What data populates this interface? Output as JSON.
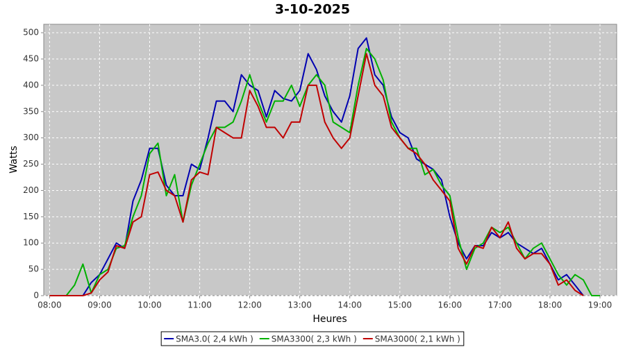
{
  "chart_data": {
    "type": "line",
    "title": "3-10-2025",
    "x_label": "Heures",
    "y_label": "Watts",
    "x": [
      "08:00",
      "08:10",
      "08:20",
      "08:30",
      "08:40",
      "08:50",
      "09:00",
      "09:10",
      "09:20",
      "09:30",
      "09:40",
      "09:50",
      "10:00",
      "10:10",
      "10:20",
      "10:30",
      "10:40",
      "10:50",
      "11:00",
      "11:10",
      "11:20",
      "11:30",
      "11:40",
      "11:50",
      "12:00",
      "12:10",
      "12:20",
      "12:30",
      "12:40",
      "12:50",
      "13:00",
      "13:10",
      "13:20",
      "13:30",
      "13:40",
      "13:50",
      "14:00",
      "14:10",
      "14:20",
      "14:30",
      "14:40",
      "14:50",
      "15:00",
      "15:10",
      "15:20",
      "15:30",
      "15:40",
      "15:50",
      "16:00",
      "16:10",
      "16:20",
      "16:30",
      "16:40",
      "16:50",
      "17:00",
      "17:10",
      "17:20",
      "17:30",
      "17:40",
      "17:50",
      "18:00",
      "18:10",
      "18:20",
      "18:30",
      "18:40",
      "18:50",
      "19:00"
    ],
    "series": [
      {
        "name": "SMA3.0( 2,4 kWh )",
        "color": "#0000b0",
        "values": [
          null,
          null,
          null,
          null,
          0,
          25,
          40,
          70,
          100,
          90,
          180,
          220,
          280,
          280,
          210,
          190,
          190,
          250,
          240,
          300,
          370,
          370,
          350,
          420,
          400,
          390,
          340,
          390,
          375,
          370,
          390,
          460,
          430,
          380,
          350,
          330,
          380,
          470,
          490,
          420,
          400,
          340,
          310,
          300,
          260,
          250,
          240,
          220,
          150,
          100,
          70,
          95,
          95,
          120,
          110,
          120,
          100,
          90,
          80,
          90,
          60,
          30,
          40,
          20,
          0,
          null,
          null
        ]
      },
      {
        "name": "SMA3300( 2,3 kWh )",
        "color": "#00b000",
        "values": [
          0,
          0,
          0,
          20,
          60,
          5,
          40,
          50,
          90,
          95,
          150,
          190,
          270,
          290,
          190,
          230,
          140,
          210,
          250,
          290,
          320,
          320,
          330,
          370,
          420,
          370,
          330,
          370,
          370,
          400,
          360,
          400,
          420,
          400,
          330,
          320,
          310,
          400,
          470,
          450,
          410,
          330,
          300,
          280,
          280,
          230,
          240,
          210,
          190,
          110,
          50,
          90,
          100,
          130,
          120,
          130,
          100,
          70,
          90,
          100,
          70,
          40,
          20,
          40,
          30,
          0,
          0
        ]
      },
      {
        "name": "SMA3000( 2,1 kWh )",
        "color": "#c00000",
        "values": [
          0,
          0,
          0,
          0,
          0,
          5,
          30,
          45,
          95,
          90,
          140,
          150,
          230,
          235,
          200,
          190,
          140,
          220,
          235,
          230,
          320,
          310,
          300,
          300,
          390,
          360,
          320,
          320,
          300,
          330,
          330,
          400,
          400,
          330,
          300,
          280,
          300,
          380,
          460,
          400,
          380,
          320,
          300,
          280,
          270,
          250,
          220,
          200,
          180,
          90,
          60,
          95,
          90,
          130,
          110,
          140,
          90,
          70,
          80,
          80,
          60,
          20,
          30,
          10,
          0,
          null,
          null
        ]
      }
    ],
    "xlim": [
      "07:53",
      "19:20"
    ],
    "xticks": [
      "08:00",
      "09:00",
      "10:00",
      "11:00",
      "12:00",
      "13:00",
      "14:00",
      "15:00",
      "16:00",
      "17:00",
      "18:00",
      "19:00"
    ],
    "ylim": [
      0,
      516
    ],
    "yticks": [
      0,
      50,
      100,
      150,
      200,
      250,
      300,
      350,
      400,
      450,
      500
    ],
    "grid": true,
    "legend": "bottom"
  }
}
